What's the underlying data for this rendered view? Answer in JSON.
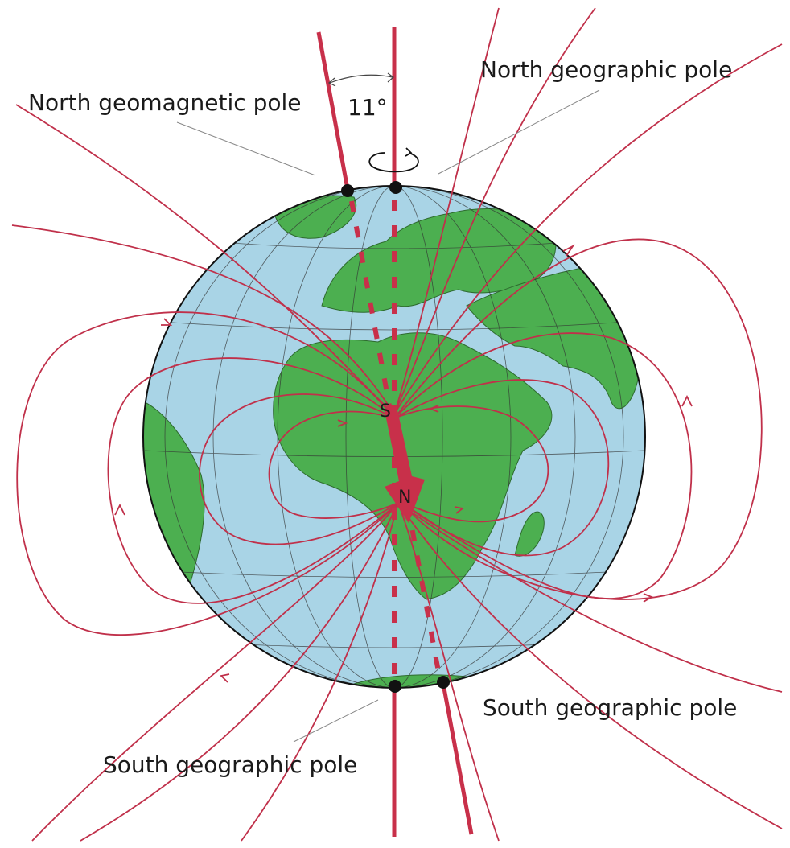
{
  "labels": {
    "north_geographic_pole": "North geographic pole",
    "north_geomagnetic_pole": "North geomagnetic pole",
    "angle": "11°",
    "south_geographic_pole_right": "South geographic pole",
    "south_geographic_pole_left": "South geographic pole",
    "magnet_s": "S",
    "magnet_n": "N"
  },
  "colors": {
    "ocean": "#a9d4e6",
    "land": "#4caf50",
    "field_line": "#c0304a",
    "axis": "#c8304a",
    "grid": "#333333",
    "pole_dot": "#111111"
  },
  "tilt_degrees": 11
}
